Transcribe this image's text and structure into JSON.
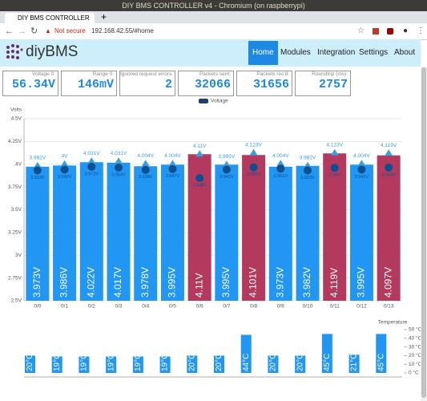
{
  "window_title": "DIY BMS CONTROLLER v4 - Chromium (on raspberrypi)",
  "tab_title": "DIY BMS CONTROLLER",
  "address": {
    "security": "Not secure",
    "url": "192.168.42.55/#home"
  },
  "logo": "diyBMS",
  "menu": [
    "Home",
    "Modules",
    "Integration",
    "Settings",
    "About"
  ],
  "stats": [
    {
      "label": "Voltage 0:",
      "value": "56.34V"
    },
    {
      "label": "Range 0:",
      "value": "146mV"
    },
    {
      "label": "Ignored request errors:",
      "value": "2"
    },
    {
      "label": "Packets sent:",
      "value": "32066"
    },
    {
      "label": "Packets rec'd:",
      "value": "31656"
    },
    {
      "label": "Roundtrip (ms):",
      "value": "2757"
    }
  ],
  "chart_data": [
    {
      "type": "bar",
      "y_label": "Volts",
      "categories": [
        "0/0",
        "0/1",
        "0/2",
        "0/3",
        "0/4",
        "0/5",
        "0/6",
        "0/7",
        "0/8",
        "0/9",
        "0/10",
        "0/11",
        "0/12",
        "0/13"
      ],
      "series": [
        {
          "name": "Voltage",
          "color": "#1b3f73",
          "values": [
            3.973,
            3.986,
            4.022,
            4.017,
            3.978,
            3.995,
            4.11,
            3.995,
            4.101,
            3.973,
            3.982,
            4.119,
            3.995,
            4.097
          ],
          "value_labels": [
            "3.973V",
            "3.986V",
            "4.022V",
            "4.017V",
            "3.978V",
            "3.995V",
            "4.11V",
            "3.995V",
            "4.101V",
            "3.973V",
            "3.982V",
            "4.119V",
            "3.995V",
            "4.097V"
          ],
          "bar_colors": [
            "#2196f3",
            "#2196f3",
            "#2196f3",
            "#2196f3",
            "#2196f3",
            "#2196f3",
            "#b33a5e",
            "#2196f3",
            "#b33a5e",
            "#2196f3",
            "#2196f3",
            "#b33a5e",
            "#2196f3",
            "#b33a5e"
          ],
          "max": {
            "color": "#3aa0e0",
            "values": [
              3.982,
              4,
              4.031,
              4.031,
              4.004,
              4.004,
              4.11,
              3.995,
              4.123,
              4.004,
              3.982,
              4.123,
              4.004,
              4.119
            ],
            "value_labels": [
              "3.982V",
              "4V",
              "4.031V",
              "4.031V",
              "4.004V",
              "4.004V",
              "4.11V",
              "3.995V",
              "4.123V",
              "4.004V",
              "3.982V",
              "4.123V",
              "4.004V",
              "4.119V"
            ]
          },
          "min": {
            "color": "#0f4f8f",
            "values": [
              3.933,
              3.942,
              3.973,
              3.964,
              3.938,
              3.947,
              3.848,
              3.942,
              3.965,
              3.951,
              3.933,
              3.96,
              3.942,
              3.964
            ],
            "value_labels": [
              "3.933V",
              "3.942V",
              "3.973V",
              "3.964V",
              "3.938V",
              "3.947V",
              "3.848V",
              "3.942V",
              "3.965V",
              "3.951V",
              "3.933V",
              "3.96V",
              "3.942V",
              "3.964V"
            ]
          }
        }
      ],
      "ylim": [
        2.5,
        4.5
      ],
      "yticks": [
        {
          "value": 2.5,
          "label": "2.5V"
        },
        {
          "value": 2.75,
          "label": "2.75V"
        },
        {
          "value": 3,
          "label": "3V"
        },
        {
          "value": 3.25,
          "label": "3.25V"
        },
        {
          "value": 3.5,
          "label": "3.5V"
        },
        {
          "value": 3.75,
          "label": "3.75V"
        },
        {
          "value": 4,
          "label": "4V"
        },
        {
          "value": 4.25,
          "label": "4.25V"
        },
        {
          "value": 4.5,
          "label": "4.5V"
        }
      ],
      "grid": true
    },
    {
      "type": "bar",
      "y_label": "Temperature",
      "y_axis_side": "right",
      "series": [
        {
          "color": "#2196f3",
          "values": [
            20,
            19,
            19,
            19,
            19,
            19,
            20,
            20,
            44,
            20,
            20,
            45,
            21,
            45
          ],
          "value_labels": [
            "20°C",
            "19°C",
            "19°C",
            "19°C",
            "19°C",
            "19°C",
            "20°C",
            "20°C",
            "44°C",
            "20°C",
            "20°C",
            "45°C",
            "21°C",
            "45°C"
          ]
        }
      ],
      "ylim": [
        0,
        50
      ],
      "yticks": [
        {
          "value": 0,
          "label": "0 °C"
        },
        {
          "value": 10,
          "label": "10 °C"
        },
        {
          "value": 20,
          "label": "20 °C"
        },
        {
          "value": 30,
          "label": "30 °C"
        },
        {
          "value": 40,
          "label": "40 °C"
        },
        {
          "value": 50,
          "label": "50 °C"
        }
      ]
    }
  ]
}
